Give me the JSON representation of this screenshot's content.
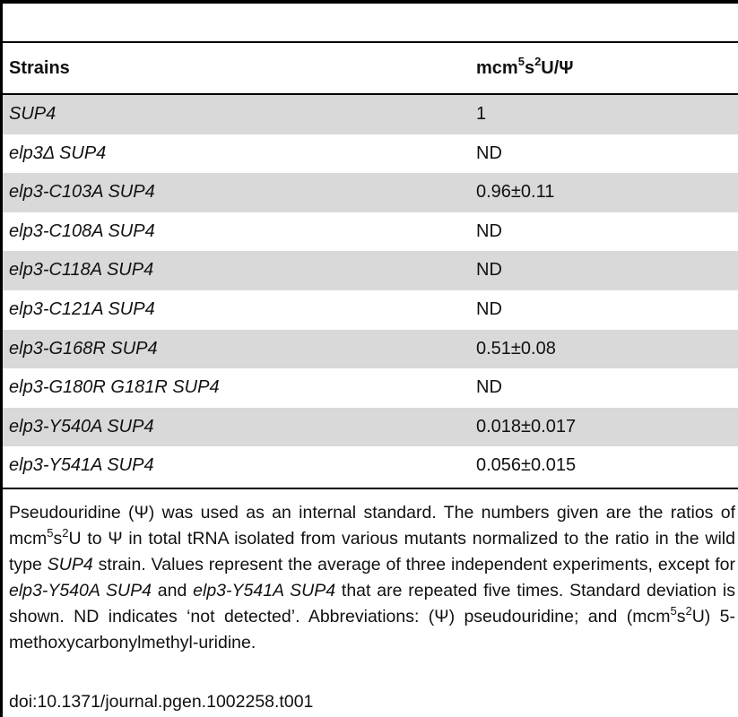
{
  "table": {
    "header": {
      "strains": "Strains",
      "value_prefix": "mcm",
      "value_sup1": "5",
      "value_mid": "s",
      "value_sup2": "2",
      "value_suffix": "U/Ψ"
    },
    "rows": [
      {
        "strain": "SUP4",
        "value": "1"
      },
      {
        "strain": "elp3Δ SUP4",
        "value": "ND"
      },
      {
        "strain": "elp3-C103A SUP4",
        "value": "0.96±0.11"
      },
      {
        "strain": "elp3-C108A SUP4",
        "value": "ND"
      },
      {
        "strain": "elp3-C118A SUP4",
        "value": "ND"
      },
      {
        "strain": "elp3-C121A SUP4",
        "value": "ND"
      },
      {
        "strain": "elp3-G168R SUP4",
        "value": "0.51±0.08"
      },
      {
        "strain": "elp3-G180R G181R SUP4",
        "value": "ND"
      },
      {
        "strain": "elp3-Y540A SUP4",
        "value": "0.018±0.017"
      },
      {
        "strain": "elp3-Y541A SUP4",
        "value": "0.056±0.015"
      }
    ]
  },
  "footnote": {
    "t1": "Pseudouridine (Ψ) was used as an internal standard. The numbers given are the ratios of mcm",
    "t1_sup1": "5",
    "t1b": "s",
    "t1_sup2": "2",
    "t2": "U to Ψ in total tRNA isolated from various mutants normalized to the ratio in the wild type ",
    "t2_em": "SUP4",
    "t3": " strain. Values represent the average of three independent experiments, except for ",
    "t3_em1": "elp3-Y540A SUP4",
    "t3_and": " and ",
    "t3_em2": "elp3-Y541A SUP4",
    "t4": " that are repeated five times. Standard deviation is shown. ND indicates ‘not detected’. Abbreviations: (Ψ) pseudouridine; and (mcm",
    "t4_sup1": "5",
    "t4b": "s",
    "t4_sup2": "2",
    "t5": "U) 5-methoxycarbonylmethyl-uridine."
  },
  "doi": "doi:10.1371/journal.pgen.1002258.t001"
}
